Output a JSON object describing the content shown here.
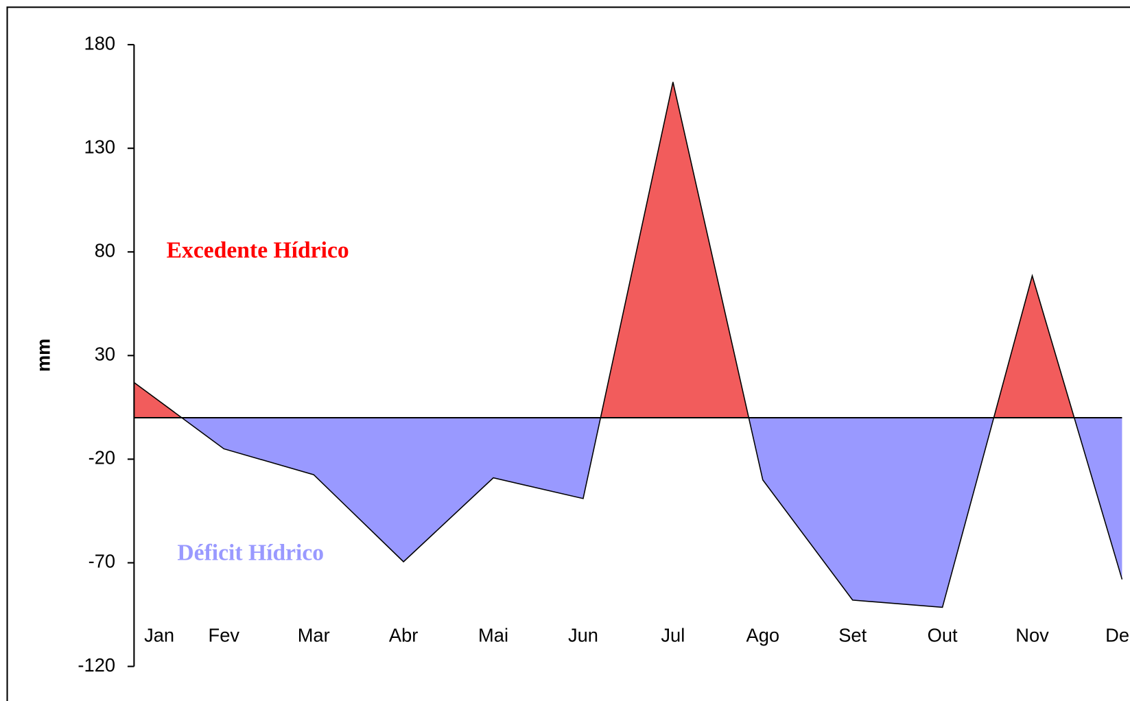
{
  "chart_data": {
    "type": "area",
    "y_label": "mm",
    "categories": [
      "Jan",
      "Fev",
      "Mar",
      "Abr",
      "Mai",
      "Jun",
      "Jul",
      "Ago",
      "Set",
      "Out",
      "Nov",
      "Dez"
    ],
    "values": [
      17,
      -15,
      -27.5,
      -69.5,
      -29,
      -39,
      162,
      -30,
      -88,
      -91.5,
      68.5,
      -78
    ],
    "positive_color": "#f25c5c",
    "negative_color": "#9999ff",
    "ylim": [
      -120,
      180
    ],
    "yticks": [
      180,
      130,
      80,
      30,
      -20,
      -70,
      -120
    ],
    "annotations": [
      {
        "text": "Excedente Hídrico",
        "color": "#ff0000"
      },
      {
        "text": "Déficit Hídrico",
        "color": "#9999ff"
      }
    ]
  }
}
